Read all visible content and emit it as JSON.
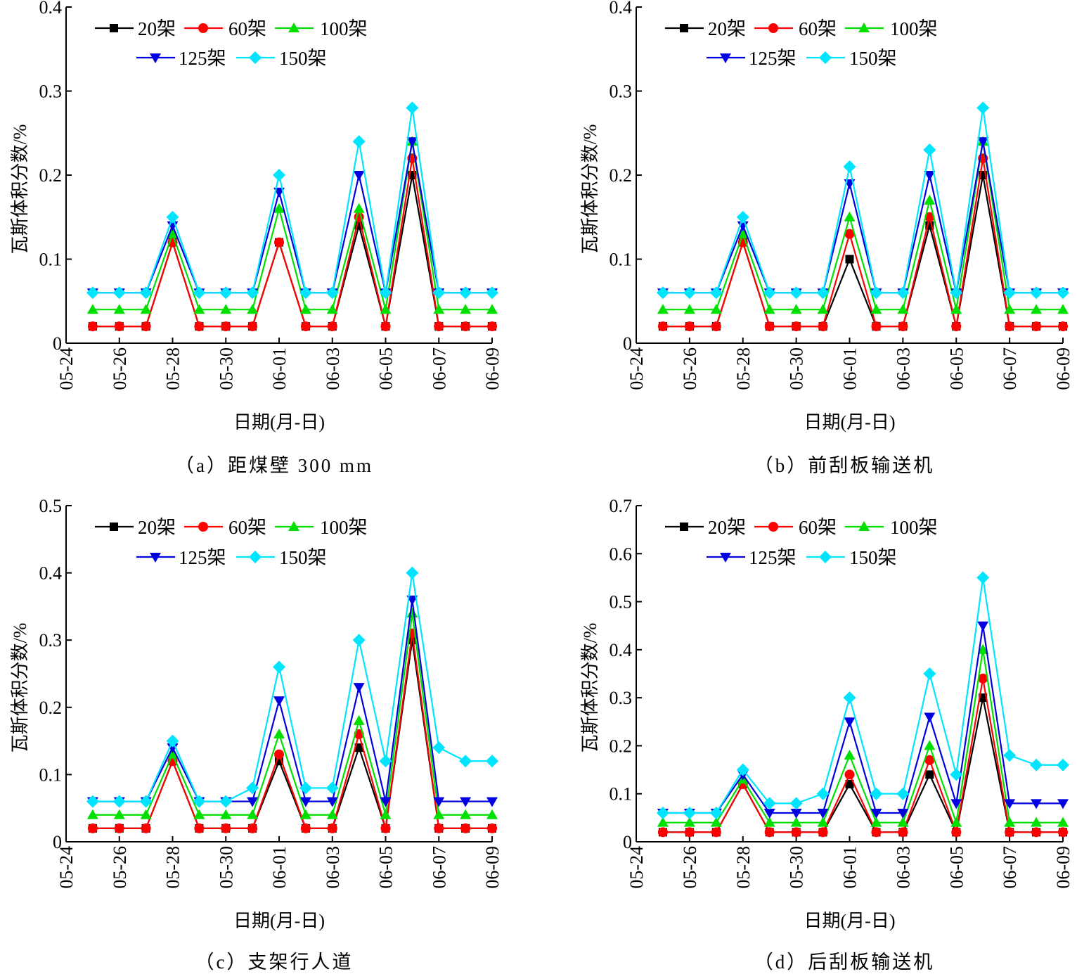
{
  "chart_data": [
    {
      "type": "line",
      "id": "a",
      "caption": "（a）距煤壁 300 mm",
      "xlabel": "日期(月-日)",
      "ylabel": "瓦斯体积分数/%",
      "ylim": [
        0,
        0.4
      ],
      "yticks": [
        0,
        0.1,
        0.2,
        0.3,
        0.4
      ],
      "ytick_labels": [
        "0",
        "0.1",
        "0.2",
        "0.3",
        "0.4"
      ],
      "xticks": [
        "05-24",
        "05-26",
        "05-28",
        "05-30",
        "06-01",
        "06-03",
        "06-05",
        "06-07",
        "06-09"
      ],
      "x": [
        "05-25",
        "05-26",
        "05-27",
        "05-28",
        "05-29",
        "05-30",
        "05-31",
        "06-01",
        "06-02",
        "06-03",
        "06-04",
        "06-05",
        "06-06",
        "06-07",
        "06-08",
        "06-09"
      ],
      "legend_position": "top-left",
      "series": [
        {
          "name": "20架",
          "color": "#000000",
          "marker": "square",
          "values": [
            0.02,
            0.02,
            0.02,
            0.12,
            0.02,
            0.02,
            0.02,
            0.12,
            0.02,
            0.02,
            0.14,
            0.02,
            0.2,
            0.02,
            0.02,
            0.02
          ]
        },
        {
          "name": "60架",
          "color": "#ff0000",
          "marker": "circle",
          "values": [
            0.02,
            0.02,
            0.02,
            0.12,
            0.02,
            0.02,
            0.02,
            0.12,
            0.02,
            0.02,
            0.15,
            0.02,
            0.22,
            0.02,
            0.02,
            0.02
          ]
        },
        {
          "name": "100架",
          "color": "#00e000",
          "marker": "triangle-up",
          "values": [
            0.04,
            0.04,
            0.04,
            0.13,
            0.04,
            0.04,
            0.04,
            0.16,
            0.04,
            0.04,
            0.16,
            0.04,
            0.24,
            0.04,
            0.04,
            0.04
          ]
        },
        {
          "name": "125架",
          "color": "#0000e0",
          "marker": "triangle-down",
          "values": [
            0.06,
            0.06,
            0.06,
            0.14,
            0.06,
            0.06,
            0.06,
            0.18,
            0.06,
            0.06,
            0.2,
            0.06,
            0.24,
            0.06,
            0.06,
            0.06
          ]
        },
        {
          "name": "150架",
          "color": "#00e5ff",
          "marker": "diamond",
          "values": [
            0.06,
            0.06,
            0.06,
            0.15,
            0.06,
            0.06,
            0.06,
            0.2,
            0.06,
            0.06,
            0.24,
            0.06,
            0.28,
            0.06,
            0.06,
            0.06
          ]
        }
      ]
    },
    {
      "type": "line",
      "id": "b",
      "caption": "（b）前刮板输送机",
      "xlabel": "日期(月-日)",
      "ylabel": "瓦斯体积分数/%",
      "ylim": [
        0,
        0.4
      ],
      "yticks": [
        0,
        0.1,
        0.2,
        0.3,
        0.4
      ],
      "ytick_labels": [
        "0",
        "0.1",
        "0.2",
        "0.3",
        "0.4"
      ],
      "xticks": [
        "05-24",
        "05-26",
        "05-28",
        "05-30",
        "06-01",
        "06-03",
        "06-05",
        "06-07",
        "06-09"
      ],
      "x": [
        "05-25",
        "05-26",
        "05-27",
        "05-28",
        "05-29",
        "05-30",
        "05-31",
        "06-01",
        "06-02",
        "06-03",
        "06-04",
        "06-05",
        "06-06",
        "06-07",
        "06-08",
        "06-09"
      ],
      "legend_position": "top-left",
      "series": [
        {
          "name": "20架",
          "color": "#000000",
          "marker": "square",
          "values": [
            0.02,
            0.02,
            0.02,
            0.12,
            0.02,
            0.02,
            0.02,
            0.1,
            0.02,
            0.02,
            0.14,
            0.02,
            0.2,
            0.02,
            0.02,
            0.02
          ]
        },
        {
          "name": "60架",
          "color": "#ff0000",
          "marker": "circle",
          "values": [
            0.02,
            0.02,
            0.02,
            0.12,
            0.02,
            0.02,
            0.02,
            0.13,
            0.02,
            0.02,
            0.15,
            0.02,
            0.22,
            0.02,
            0.02,
            0.02
          ]
        },
        {
          "name": "100架",
          "color": "#00e000",
          "marker": "triangle-up",
          "values": [
            0.04,
            0.04,
            0.04,
            0.13,
            0.04,
            0.04,
            0.04,
            0.15,
            0.04,
            0.04,
            0.17,
            0.04,
            0.24,
            0.04,
            0.04,
            0.04
          ]
        },
        {
          "name": "125架",
          "color": "#0000e0",
          "marker": "triangle-down",
          "values": [
            0.06,
            0.06,
            0.06,
            0.14,
            0.06,
            0.06,
            0.06,
            0.19,
            0.06,
            0.06,
            0.2,
            0.06,
            0.24,
            0.06,
            0.06,
            0.06
          ]
        },
        {
          "name": "150架",
          "color": "#00e5ff",
          "marker": "diamond",
          "values": [
            0.06,
            0.06,
            0.06,
            0.15,
            0.06,
            0.06,
            0.06,
            0.21,
            0.06,
            0.06,
            0.23,
            0.06,
            0.28,
            0.06,
            0.06,
            0.06
          ]
        }
      ]
    },
    {
      "type": "line",
      "id": "c",
      "caption": "（c）支架行人道",
      "xlabel": "日期(月-日)",
      "ylabel": "瓦斯体积分数/%",
      "ylim": [
        0,
        0.5
      ],
      "yticks": [
        0,
        0.1,
        0.2,
        0.3,
        0.4,
        0.5
      ],
      "ytick_labels": [
        "0",
        "0.1",
        "0.2",
        "0.3",
        "0.4",
        "0.5"
      ],
      "xticks": [
        "05-24",
        "05-26",
        "05-28",
        "05-30",
        "06-01",
        "06-03",
        "06-05",
        "06-07",
        "06-09"
      ],
      "x": [
        "05-25",
        "05-26",
        "05-27",
        "05-28",
        "05-29",
        "05-30",
        "05-31",
        "06-01",
        "06-02",
        "06-03",
        "06-04",
        "06-05",
        "06-06",
        "06-07",
        "06-08",
        "06-09"
      ],
      "legend_position": "top-left",
      "series": [
        {
          "name": "20架",
          "color": "#000000",
          "marker": "square",
          "values": [
            0.02,
            0.02,
            0.02,
            0.12,
            0.02,
            0.02,
            0.02,
            0.12,
            0.02,
            0.02,
            0.14,
            0.02,
            0.3,
            0.02,
            0.02,
            0.02
          ]
        },
        {
          "name": "60架",
          "color": "#ff0000",
          "marker": "circle",
          "values": [
            0.02,
            0.02,
            0.02,
            0.12,
            0.02,
            0.02,
            0.02,
            0.13,
            0.02,
            0.02,
            0.16,
            0.02,
            0.31,
            0.02,
            0.02,
            0.02
          ]
        },
        {
          "name": "100架",
          "color": "#00e000",
          "marker": "triangle-up",
          "values": [
            0.04,
            0.04,
            0.04,
            0.13,
            0.04,
            0.04,
            0.04,
            0.16,
            0.04,
            0.04,
            0.18,
            0.04,
            0.34,
            0.04,
            0.04,
            0.04
          ]
        },
        {
          "name": "125架",
          "color": "#0000e0",
          "marker": "triangle-down",
          "values": [
            0.06,
            0.06,
            0.06,
            0.14,
            0.06,
            0.06,
            0.06,
            0.21,
            0.06,
            0.06,
            0.23,
            0.06,
            0.36,
            0.06,
            0.06,
            0.06
          ]
        },
        {
          "name": "150架",
          "color": "#00e5ff",
          "marker": "diamond",
          "values": [
            0.06,
            0.06,
            0.06,
            0.15,
            0.06,
            0.06,
            0.08,
            0.26,
            0.08,
            0.08,
            0.3,
            0.12,
            0.4,
            0.14,
            0.12,
            0.12
          ]
        }
      ]
    },
    {
      "type": "line",
      "id": "d",
      "caption": "（d）后刮板输送机",
      "xlabel": "日期(月-日)",
      "ylabel": "瓦斯体积分数/%",
      "ylim": [
        0,
        0.7
      ],
      "yticks": [
        0,
        0.1,
        0.2,
        0.3,
        0.4,
        0.5,
        0.6,
        0.7
      ],
      "ytick_labels": [
        "0",
        "0.1",
        "0.2",
        "0.3",
        "0.4",
        "0.5",
        "0.6",
        "0.7"
      ],
      "xticks": [
        "05-24",
        "05-26",
        "05-28",
        "05-30",
        "06-01",
        "06-03",
        "06-05",
        "06-07",
        "06-09"
      ],
      "x": [
        "05-25",
        "05-26",
        "05-27",
        "05-28",
        "05-29",
        "05-30",
        "05-31",
        "06-01",
        "06-02",
        "06-03",
        "06-04",
        "06-05",
        "06-06",
        "06-07",
        "06-08",
        "06-09"
      ],
      "legend_position": "top-left",
      "series": [
        {
          "name": "20架",
          "color": "#000000",
          "marker": "square",
          "values": [
            0.02,
            0.02,
            0.02,
            0.12,
            0.02,
            0.02,
            0.02,
            0.12,
            0.02,
            0.02,
            0.14,
            0.02,
            0.3,
            0.02,
            0.02,
            0.02
          ]
        },
        {
          "name": "60架",
          "color": "#ff0000",
          "marker": "circle",
          "values": [
            0.02,
            0.02,
            0.02,
            0.12,
            0.02,
            0.02,
            0.02,
            0.14,
            0.02,
            0.02,
            0.17,
            0.02,
            0.34,
            0.02,
            0.02,
            0.02
          ]
        },
        {
          "name": "100架",
          "color": "#00e000",
          "marker": "triangle-up",
          "values": [
            0.04,
            0.04,
            0.04,
            0.13,
            0.04,
            0.04,
            0.04,
            0.18,
            0.04,
            0.04,
            0.2,
            0.04,
            0.4,
            0.04,
            0.04,
            0.04
          ]
        },
        {
          "name": "125架",
          "color": "#0000e0",
          "marker": "triangle-down",
          "values": [
            0.06,
            0.06,
            0.06,
            0.14,
            0.06,
            0.06,
            0.06,
            0.25,
            0.06,
            0.06,
            0.26,
            0.08,
            0.45,
            0.08,
            0.08,
            0.08
          ]
        },
        {
          "name": "150架",
          "color": "#00e5ff",
          "marker": "diamond",
          "values": [
            0.06,
            0.06,
            0.06,
            0.15,
            0.08,
            0.08,
            0.1,
            0.3,
            0.1,
            0.1,
            0.35,
            0.14,
            0.55,
            0.18,
            0.16,
            0.16
          ]
        }
      ]
    }
  ]
}
